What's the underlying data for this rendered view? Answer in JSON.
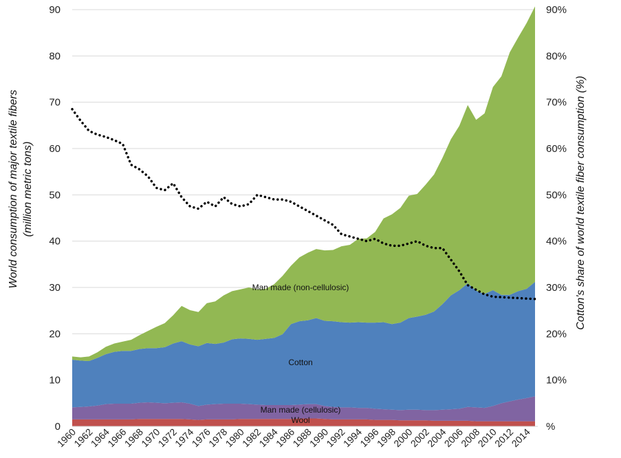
{
  "chart_data": {
    "type": "area",
    "stacked": true,
    "title": "",
    "xlabel": "",
    "ylabel": [
      "World consumption of major textile fibers",
      "(million metric tons)"
    ],
    "y2label": "Cotton's share of world textile fiber consumption (%)",
    "ylim": [
      0,
      90
    ],
    "y_ticks": [
      0,
      10,
      20,
      30,
      40,
      50,
      60,
      70,
      80,
      90
    ],
    "y2lim": [
      0,
      90
    ],
    "y2_ticks": [
      0,
      10,
      20,
      30,
      40,
      50,
      60,
      70,
      80,
      90
    ],
    "y2_tick_labels": [
      "%",
      "10%",
      "20%",
      "30%",
      "40%",
      "50%",
      "60%",
      "70%",
      "80%",
      "90%"
    ],
    "x_tick_labels": [
      "1960",
      "1962",
      "1964",
      "1966",
      "1968",
      "1970",
      "1972",
      "1974",
      "1976",
      "1978",
      "1980",
      "1982",
      "1984",
      "1986",
      "1988",
      "1990",
      "1992",
      "1994",
      "1996",
      "1998",
      "2000",
      "2002",
      "2004",
      "2006",
      "2008",
      "2010",
      "2012",
      "2014"
    ],
    "grid": "horizontal",
    "x": [
      1960,
      1961,
      1962,
      1963,
      1964,
      1965,
      1966,
      1967,
      1968,
      1969,
      1970,
      1971,
      1972,
      1973,
      1974,
      1975,
      1976,
      1977,
      1978,
      1979,
      1980,
      1981,
      1982,
      1983,
      1984,
      1985,
      1986,
      1987,
      1988,
      1989,
      1990,
      1991,
      1992,
      1993,
      1994,
      1995,
      1996,
      1997,
      1998,
      1999,
      2000,
      2001,
      2002,
      2003,
      2004,
      2005,
      2006,
      2007,
      2008,
      2009,
      2010,
      2011,
      2012,
      2013,
      2014,
      2015
    ],
    "series": [
      {
        "name": "Wool",
        "color": "#c0504d",
        "values": [
          1.5,
          1.5,
          1.5,
          1.5,
          1.5,
          1.5,
          1.5,
          1.5,
          1.6,
          1.6,
          1.6,
          1.6,
          1.6,
          1.6,
          1.5,
          1.4,
          1.5,
          1.5,
          1.5,
          1.5,
          1.6,
          1.6,
          1.6,
          1.6,
          1.6,
          1.6,
          1.6,
          1.7,
          1.7,
          1.7,
          1.6,
          1.5,
          1.5,
          1.5,
          1.5,
          1.5,
          1.4,
          1.4,
          1.4,
          1.3,
          1.3,
          1.3,
          1.3,
          1.2,
          1.2,
          1.2,
          1.2,
          1.2,
          1.1,
          1.1,
          1.1,
          1.1,
          1.1,
          1.1,
          1.1,
          1.1
        ]
      },
      {
        "name": "Man made (cellulosic)",
        "color": "#8064a2",
        "values": [
          2.6,
          2.7,
          2.8,
          3.0,
          3.3,
          3.4,
          3.4,
          3.4,
          3.5,
          3.6,
          3.5,
          3.4,
          3.5,
          3.6,
          3.4,
          3.0,
          3.2,
          3.3,
          3.4,
          3.4,
          3.3,
          3.2,
          3.1,
          3.0,
          3.0,
          3.0,
          3.0,
          3.0,
          3.1,
          3.1,
          2.8,
          2.7,
          2.6,
          2.6,
          2.5,
          2.5,
          2.4,
          2.3,
          2.2,
          2.2,
          2.3,
          2.3,
          2.2,
          2.3,
          2.4,
          2.5,
          2.6,
          3.0,
          3.0,
          2.9,
          3.3,
          3.9,
          4.3,
          4.7,
          5.0,
          5.4
        ]
      },
      {
        "name": "Cotton",
        "color": "#4f81bd",
        "values": [
          10.3,
          10.0,
          9.8,
          10.3,
          10.8,
          11.2,
          11.4,
          11.4,
          11.6,
          11.7,
          11.8,
          12.1,
          12.8,
          13.2,
          12.8,
          12.9,
          13.3,
          13.0,
          13.2,
          13.9,
          14.1,
          14.1,
          14.0,
          14.3,
          14.5,
          15.3,
          17.5,
          18.0,
          18.1,
          18.6,
          18.4,
          18.5,
          18.4,
          18.3,
          18.5,
          18.4,
          18.6,
          18.8,
          18.5,
          18.9,
          19.8,
          20.1,
          20.6,
          21.3,
          22.8,
          24.6,
          25.6,
          26.7,
          25.2,
          24.6,
          25.0,
          23.4,
          23.0,
          23.4,
          23.6,
          24.7
        ]
      },
      {
        "name": "Man made (non-cellulosic)",
        "color": "#92b853",
        "values": [
          0.7,
          0.7,
          1.0,
          1.2,
          1.6,
          1.8,
          2.0,
          2.4,
          3.0,
          3.7,
          4.6,
          5.2,
          6.1,
          7.6,
          7.4,
          7.4,
          8.6,
          9.2,
          10.2,
          10.4,
          10.6,
          11.1,
          10.9,
          10.8,
          11.6,
          12.6,
          12.6,
          13.8,
          14.6,
          14.9,
          15.2,
          15.4,
          16.4,
          16.8,
          18.0,
          18.2,
          19.6,
          22.4,
          23.7,
          24.8,
          26.4,
          26.5,
          28.1,
          29.6,
          31.6,
          33.7,
          35.5,
          38.5,
          36.9,
          39.0,
          43.9,
          47.2,
          52.4,
          54.8,
          57.4,
          59.5
        ]
      }
    ],
    "line_series": {
      "name": "Cotton's share",
      "axis": "right",
      "style": "dotted",
      "color": "#000000",
      "values": [
        68.5,
        66.0,
        63.8,
        63.0,
        62.5,
        61.8,
        61.0,
        56.5,
        55.5,
        54.0,
        51.5,
        51.0,
        52.5,
        49.5,
        47.5,
        47.0,
        48.5,
        47.5,
        49.5,
        48.0,
        47.5,
        48.0,
        50.0,
        49.5,
        49.0,
        49.0,
        48.5,
        47.5,
        46.5,
        45.5,
        44.5,
        43.5,
        41.5,
        41.0,
        40.5,
        40.0,
        40.5,
        39.5,
        39.0,
        39.0,
        39.5,
        40.0,
        39.0,
        38.5,
        38.5,
        36.0,
        33.5,
        30.5,
        29.5,
        28.5,
        28.0,
        27.5
      ]
    },
    "line_x": [
      1960,
      1961,
      1962,
      1963,
      1964,
      1965,
      1966,
      1967,
      1968,
      1969,
      1970,
      1971,
      1972,
      1973,
      1974,
      1975,
      1976,
      1977,
      1978,
      1979,
      1980,
      1981,
      1982,
      1983,
      1984,
      1985,
      1986,
      1987,
      1988,
      1989,
      1990,
      1991,
      1992,
      1993,
      1994,
      1995,
      1996,
      1997,
      1998,
      1999,
      2000,
      2001,
      2002,
      2003,
      2004,
      2005,
      2006,
      2007,
      2008,
      2009,
      2010,
      2015
    ],
    "labels": {
      "non_cellulosic": "Man made (non-cellulosic)",
      "cotton": "Cotton",
      "cellulosic": "Man made (cellulosic)",
      "wool": "Wool"
    }
  }
}
